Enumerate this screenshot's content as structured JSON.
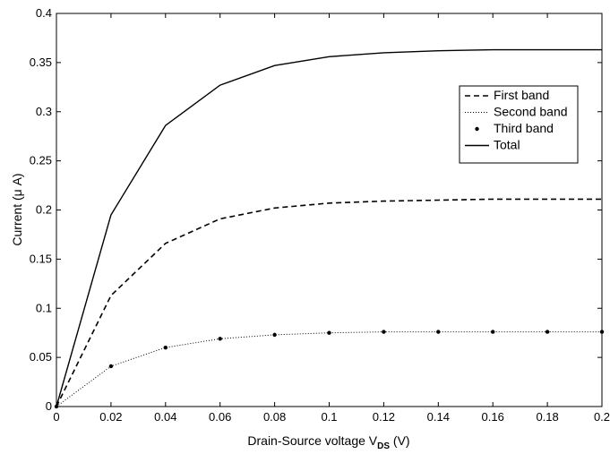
{
  "chart_data": {
    "type": "line",
    "title": "",
    "xlabel": "Drain-Source voltage V",
    "xlabel_sub": "DS",
    "xlabel_unit": " (V)",
    "ylabel": "Current (μ A)",
    "xlim": [
      0,
      0.2
    ],
    "ylim": [
      0,
      0.4
    ],
    "xticks": [
      "0",
      "0.02",
      "0.04",
      "0.06",
      "0.08",
      "0.1",
      "0.12",
      "0.14",
      "0.16",
      "0.18",
      "0.2"
    ],
    "yticks": [
      "0",
      "0.05",
      "0.1",
      "0.15",
      "0.2",
      "0.25",
      "0.3",
      "0.35",
      "0.4"
    ],
    "grid": false,
    "legend_position": "top-right",
    "x": [
      0,
      0.02,
      0.04,
      0.06,
      0.08,
      0.1,
      0.12,
      0.14,
      0.16,
      0.18,
      0.2
    ],
    "series": [
      {
        "name": "First band",
        "style": "dashed",
        "values": [
          0,
          0.113,
          0.166,
          0.191,
          0.202,
          0.207,
          0.209,
          0.21,
          0.211,
          0.211,
          0.211
        ]
      },
      {
        "name": "Second band",
        "style": "dotted",
        "values": [
          0,
          0.041,
          0.06,
          0.069,
          0.073,
          0.075,
          0.076,
          0.076,
          0.076,
          0.076,
          0.076
        ]
      },
      {
        "name": "Third band",
        "style": "markers",
        "values": [
          0,
          0.041,
          0.06,
          0.069,
          0.073,
          0.075,
          0.076,
          0.076,
          0.076,
          0.076,
          0.076
        ]
      },
      {
        "name": "Total",
        "style": "solid",
        "values": [
          0,
          0.195,
          0.286,
          0.327,
          0.347,
          0.356,
          0.36,
          0.362,
          0.363,
          0.363,
          0.363
        ]
      }
    ],
    "colors": {
      "line": "#000000",
      "background": "#ffffff"
    }
  }
}
